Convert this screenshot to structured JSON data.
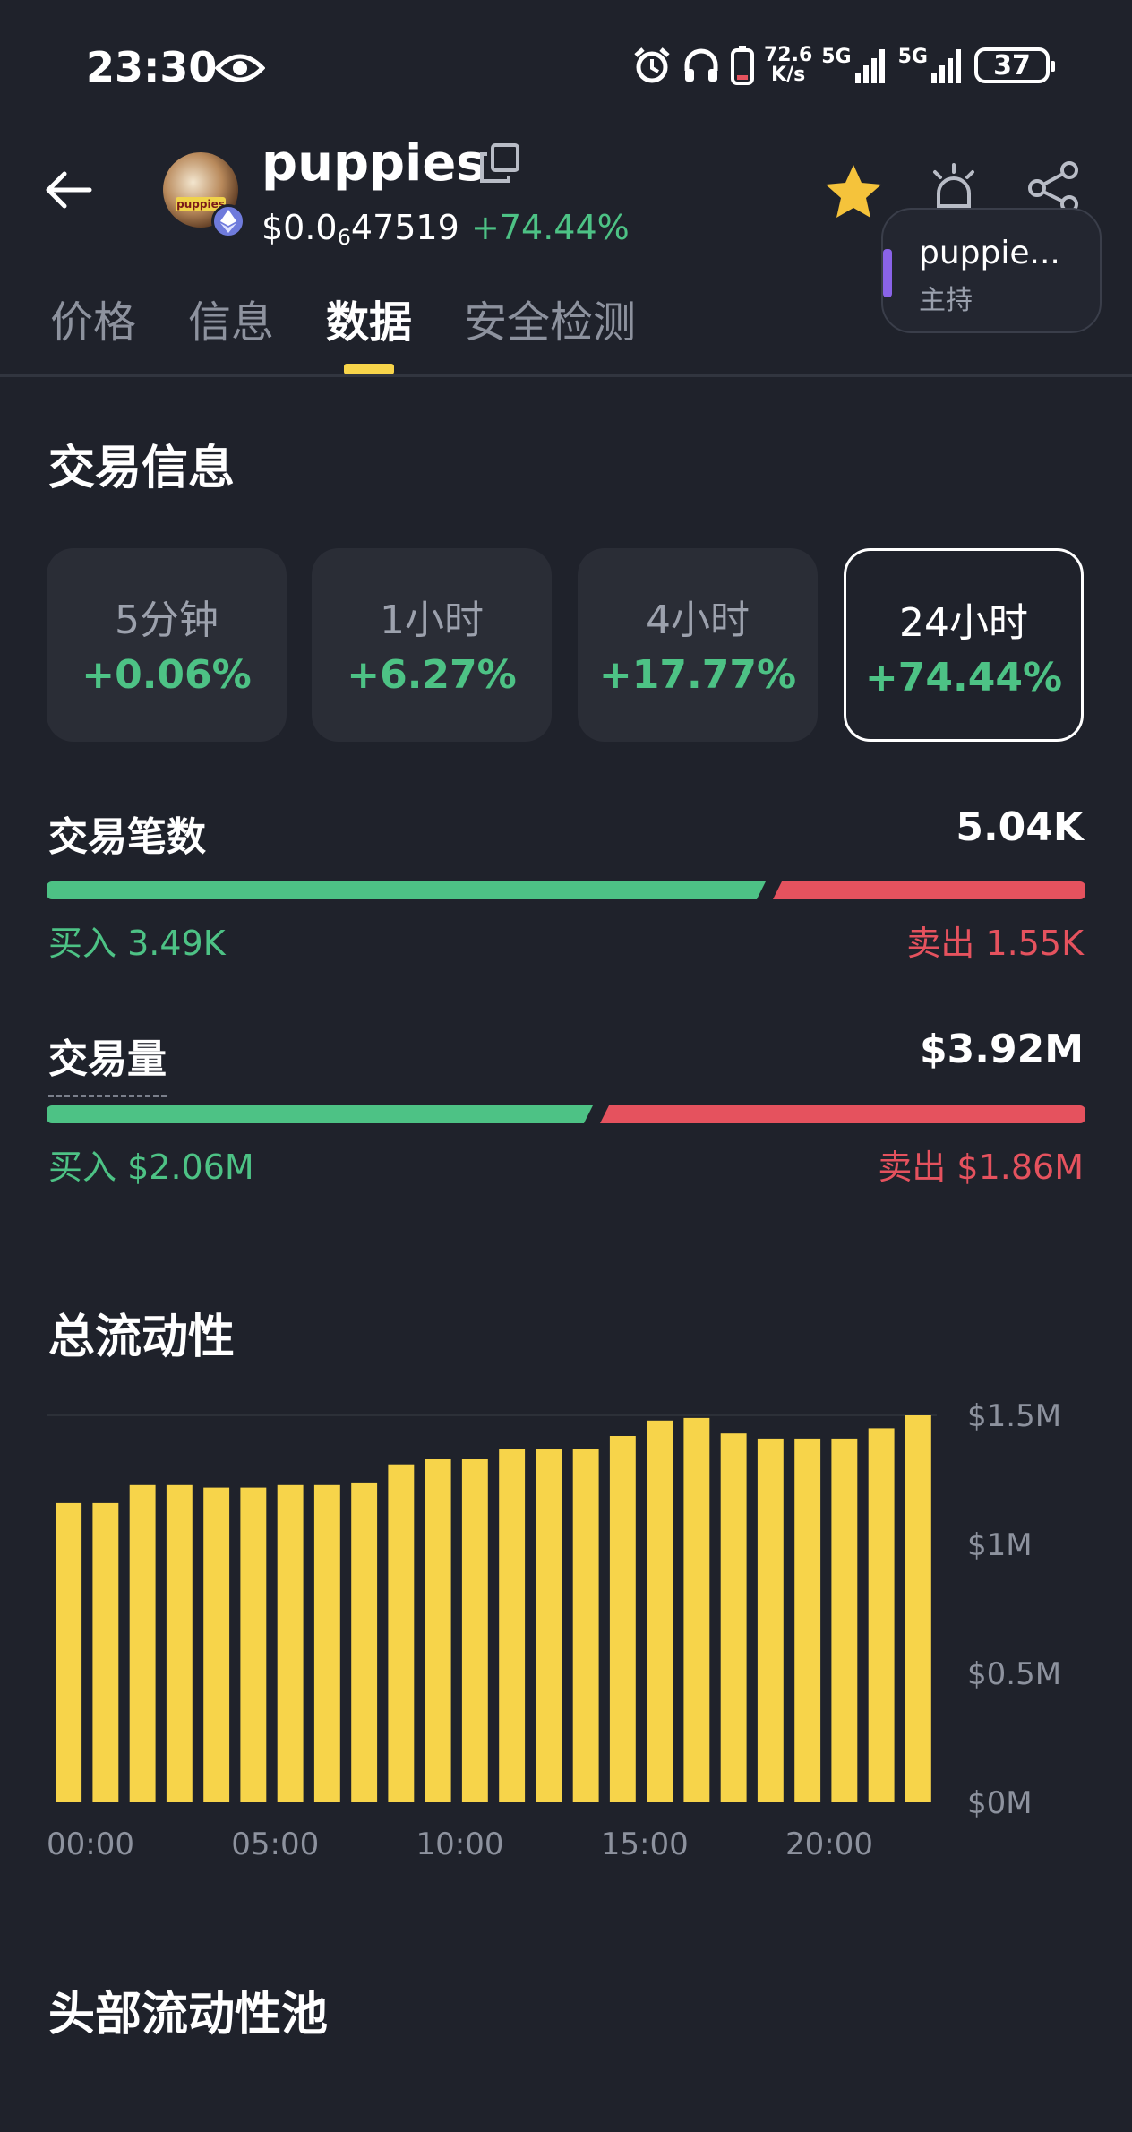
{
  "status_bar": {
    "time": "23:30",
    "net_speed_value": "72.6",
    "net_speed_unit": "K/s",
    "signal1_label": "5G",
    "signal2_label": "5G",
    "battery": "37",
    "icons": [
      "eye-icon",
      "alarm-icon",
      "headphones-icon",
      "phone-battery-icon",
      "signal-icon",
      "signal-icon",
      "battery-icon"
    ]
  },
  "header": {
    "token_name": "puppies",
    "avatar_text": "puppies",
    "price_prefix": "$0.0",
    "price_zero_count": "6",
    "price_suffix": "47519",
    "change": "+74.44%",
    "host_name": "puppie...",
    "host_role": "主持",
    "icons": [
      "back-arrow-icon",
      "copy-icon",
      "ethereum-icon",
      "star-icon",
      "alert-icon",
      "share-icon"
    ],
    "colors": {
      "star": "#f5c33b",
      "positive": "#4dc285",
      "host_accent": "#8a63e8"
    }
  },
  "tabs": [
    {
      "label": "价格",
      "active": false
    },
    {
      "label": "信息",
      "active": false
    },
    {
      "label": "数据",
      "active": true
    },
    {
      "label": "安全检测",
      "active": false
    }
  ],
  "trade_info": {
    "title": "交易信息",
    "periods": [
      {
        "label": "5分钟",
        "change": "+0.06%",
        "selected": false
      },
      {
        "label": "1小时",
        "change": "+6.27%",
        "selected": false
      },
      {
        "label": "4小时",
        "change": "+17.77%",
        "selected": false
      },
      {
        "label": "24小时",
        "change": "+74.44%",
        "selected": true
      }
    ],
    "transactions": {
      "label": "交易笔数",
      "total": "5.04K",
      "buy_label": "买入",
      "buy_value": "3.49K",
      "sell_label": "卖出",
      "sell_value": "1.55K",
      "buy_fraction": 0.6925
    },
    "volume": {
      "label": "交易量",
      "total": "$3.92M",
      "buy_label": "买入",
      "buy_value": "$2.06M",
      "sell_label": "卖出",
      "sell_value": "$1.86M",
      "buy_fraction": 0.5255
    },
    "colors": {
      "buy": "#4dc285",
      "sell": "#e5525e"
    }
  },
  "liquidity": {
    "title": "总流动性"
  },
  "chart_data": {
    "type": "bar",
    "x_tick_labels": [
      "00:00",
      "05:00",
      "10:00",
      "15:00",
      "20:00"
    ],
    "y_tick_labels": [
      "$0M",
      "$0.5M",
      "$1M",
      "$1.5M"
    ],
    "ylim": [
      0,
      1.5
    ],
    "bar_color": "#f7d44a",
    "values": [
      1.16,
      1.16,
      1.23,
      1.23,
      1.22,
      1.22,
      1.23,
      1.23,
      1.24,
      1.31,
      1.33,
      1.33,
      1.37,
      1.37,
      1.37,
      1.42,
      1.48,
      1.49,
      1.43,
      1.41,
      1.41,
      1.41,
      1.45,
      1.5
    ]
  },
  "top_pools": {
    "title": "头部流动性池"
  }
}
